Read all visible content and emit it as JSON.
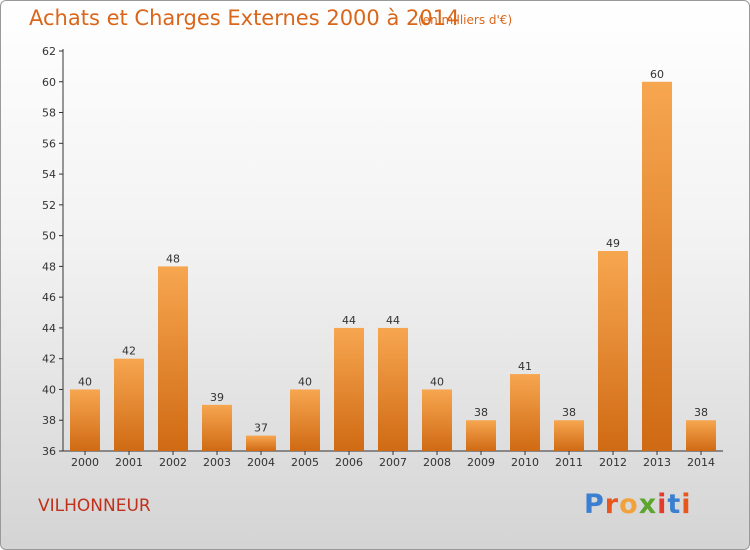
{
  "title": "Achats et Charges Externes 2000 à 2014",
  "subtitle": "(en milliers d'€)",
  "commune": "VILHONNEUR",
  "logo": {
    "letters": [
      "P",
      "r",
      "o",
      "x",
      "i",
      "t",
      "i"
    ],
    "colors": [
      "#3a7fd0",
      "#e8561b",
      "#f2a23a",
      "#5da52e",
      "#e23a2b",
      "#3a7fd0",
      "#e8561b"
    ]
  },
  "colors": {
    "bar_top": "#f7a650",
    "bar_bottom": "#d06a14",
    "title": "#d9661a",
    "commune": "#c0301a"
  },
  "chart_data": {
    "type": "bar",
    "title": "Achats et Charges Externes 2000 à 2014",
    "subtitle": "(en milliers d'€)",
    "categories": [
      "2000",
      "2001",
      "2002",
      "2003",
      "2004",
      "2005",
      "2006",
      "2007",
      "2008",
      "2009",
      "2010",
      "2011",
      "2012",
      "2013",
      "2014"
    ],
    "values": [
      40,
      42,
      48,
      39,
      37,
      40,
      44,
      44,
      40,
      38,
      41,
      38,
      49,
      60,
      38
    ],
    "ylim": [
      36,
      62
    ],
    "yticks": [
      36,
      38,
      40,
      42,
      44,
      46,
      48,
      50,
      52,
      54,
      56,
      58,
      60,
      62
    ],
    "grid": false
  }
}
